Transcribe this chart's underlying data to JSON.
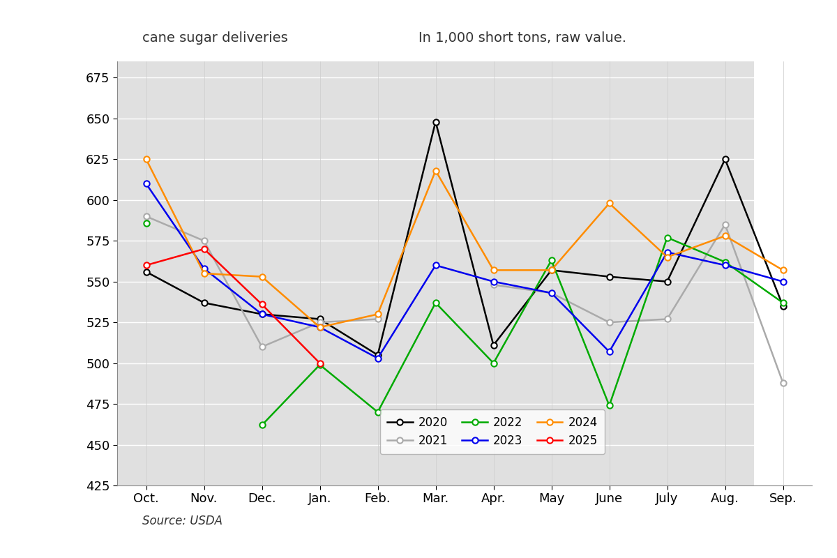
{
  "months": [
    "Oct.",
    "Nov.",
    "Dec.",
    "Jan.",
    "Feb.",
    "Mar.",
    "Apr.",
    "May",
    "June",
    "July",
    "Aug.",
    "Sep."
  ],
  "series": {
    "2020": {
      "color": "#000000",
      "values": [
        556,
        537,
        530,
        527,
        505,
        648,
        511,
        557,
        553,
        550,
        625,
        535
      ]
    },
    "2021": {
      "color": "#aaaaaa",
      "values": [
        590,
        575,
        510,
        525,
        527,
        null,
        548,
        543,
        525,
        527,
        585,
        488
      ]
    },
    "2022": {
      "color": "#00aa00",
      "values": [
        586,
        null,
        462,
        499,
        470,
        537,
        500,
        563,
        474,
        577,
        562,
        537
      ]
    },
    "2023": {
      "color": "#0000ee",
      "values": [
        610,
        558,
        530,
        522,
        503,
        560,
        550,
        543,
        507,
        568,
        560,
        550
      ]
    },
    "2024": {
      "color": "#ff8c00",
      "values": [
        625,
        555,
        553,
        522,
        530,
        618,
        557,
        557,
        598,
        565,
        578,
        557
      ]
    },
    "2025": {
      "color": "#ff0000",
      "values": [
        560,
        570,
        536,
        500,
        null,
        null,
        null,
        null,
        null,
        null,
        null,
        null
      ]
    }
  },
  "title_left": "cane sugar deliveries",
  "title_right": "In 1,000 short tons, raw value.",
  "source": "Source: USDA",
  "ylim": [
    425,
    685
  ],
  "yticks": [
    425,
    450,
    475,
    500,
    525,
    550,
    575,
    600,
    625,
    650,
    675
  ],
  "plot_bg": "#e0e0e0",
  "fig_bg": "#ffffff",
  "legend_order": [
    "2020",
    "2021",
    "2022",
    "2023",
    "2024",
    "2025"
  ]
}
